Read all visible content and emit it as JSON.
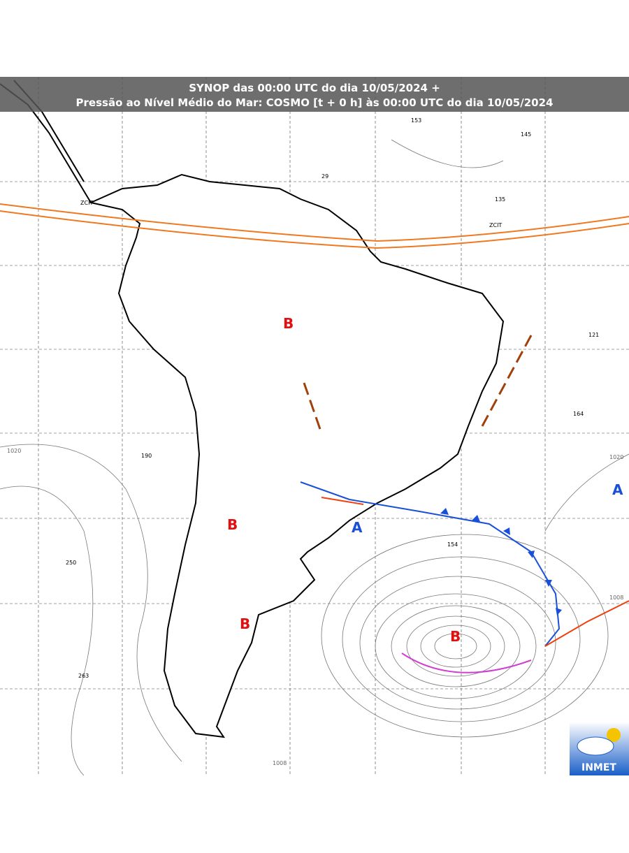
{
  "header": {
    "title_line1": "SYNOP das 00:00 UTC do dia 10/05/2024 +",
    "title_line2": "Pressão ao Nível Médio do Mar: COSMO [t + 0 h] às 00:00 UTC do dia 10/05/2024"
  },
  "pressure_centers": [
    "B",
    "B",
    "B",
    "B",
    "A",
    "A"
  ],
  "isobar_labels": [
    "1020",
    "1020",
    "1008",
    "1008"
  ],
  "itcz_labels": [
    "ZCIT",
    "ZCIT"
  ],
  "stations": [
    "153",
    "145",
    "29",
    "135",
    "121",
    "164",
    "190",
    "250",
    "154",
    "263"
  ],
  "logo": {
    "text": "INMET"
  }
}
